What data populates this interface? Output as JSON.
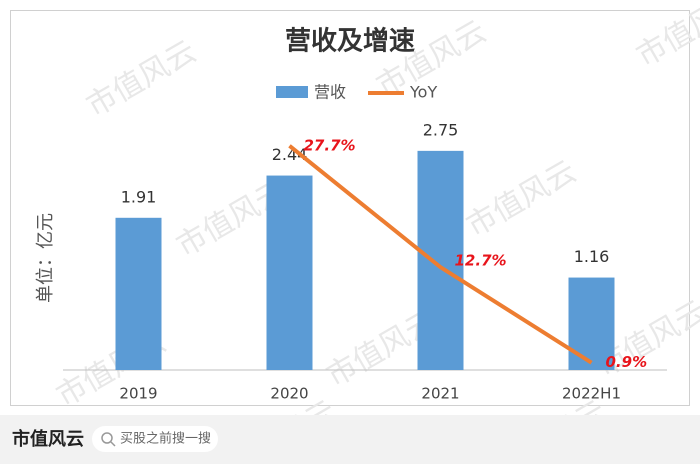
{
  "chart_data": {
    "type": "bar_line",
    "title": "营收及增速",
    "y_label": "单位：亿元",
    "categories": [
      "2019",
      "2020",
      "2021",
      "2022H1"
    ],
    "series": [
      {
        "name": "营收",
        "color": "#5b9bd5",
        "values": [
          1.91,
          2.44,
          2.75,
          1.16
        ]
      },
      {
        "name": "YoY",
        "color": "#ed7d31",
        "axis": "y2",
        "values": [
          null,
          27.7,
          12.7,
          0.9
        ],
        "value_labels": [
          null,
          "27.7%",
          "12.7%",
          "0.9%"
        ]
      }
    ],
    "ylim": [
      0,
      3.2
    ],
    "y2lim": [
      0,
      31.5
    ],
    "legend": "top"
  },
  "watermark": "市值风云",
  "footer": {
    "brand": "市值风云",
    "search": "买股之前搜一搜"
  }
}
